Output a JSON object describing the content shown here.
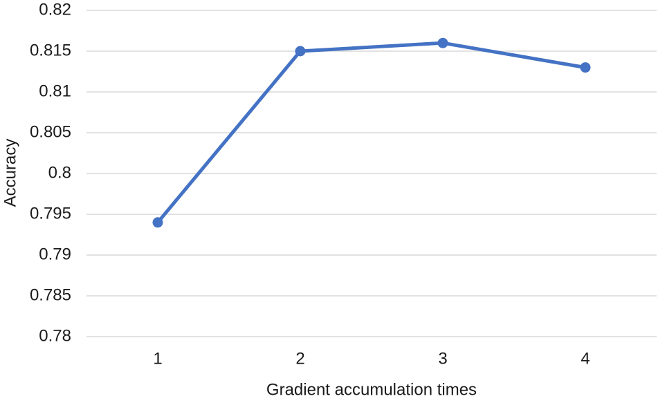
{
  "chart_data": {
    "type": "line",
    "x_label": "Gradient accumulation times",
    "y_label": "Accuracy",
    "categories": [
      "1",
      "2",
      "3",
      "4"
    ],
    "values": [
      0.794,
      0.815,
      0.816,
      0.813
    ],
    "color": "#4472c4",
    "ylim": [
      0.78,
      0.82
    ],
    "yticks": [
      0.78,
      0.785,
      0.79,
      0.795,
      0.8,
      0.805,
      0.81,
      0.815,
      0.82
    ],
    "grid": true
  }
}
